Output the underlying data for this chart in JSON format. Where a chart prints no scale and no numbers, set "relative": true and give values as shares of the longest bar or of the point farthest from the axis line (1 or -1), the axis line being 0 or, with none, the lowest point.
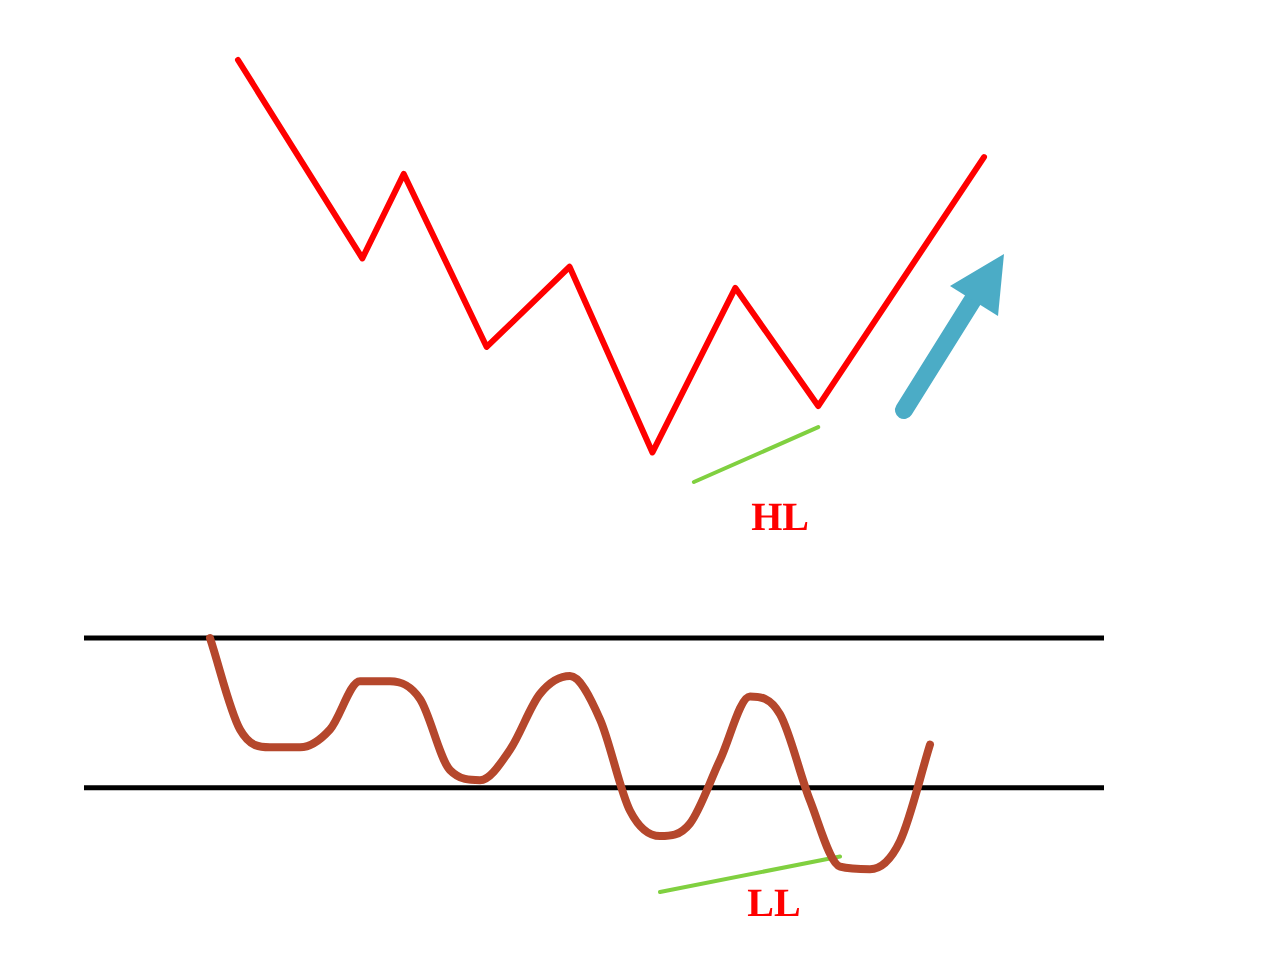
{
  "chart_data": [
    {
      "type": "line",
      "relative": true,
      "categories": [
        null,
        null,
        null,
        null,
        null,
        null,
        null,
        null,
        null,
        null,
        null,
        null,
        null,
        null,
        null,
        null,
        null,
        null,
        null
      ],
      "series": [
        {
          "color": "#ff0000",
          "values": [
            1,
            null,
            null,
            0.53,
            0.73,
            null,
            0.32,
            null,
            0.51,
            null,
            0.07,
            null,
            0.46,
            null,
            0.18,
            null,
            null,
            null,
            0.77
          ]
        },
        {
          "color": "#80d040",
          "values": [
            null,
            null,
            null,
            null,
            null,
            null,
            null,
            null,
            null,
            null,
            null,
            0,
            null,
            null,
            0.13,
            null,
            null,
            null,
            null
          ]
        }
      ],
      "annotations": [
        "HL"
      ],
      "legend": false
    },
    {
      "type": "line",
      "relative": true,
      "categories": [
        null,
        null,
        null,
        null,
        null,
        null,
        null,
        null,
        null,
        null,
        null,
        null,
        null,
        null,
        null,
        null,
        null,
        null,
        null,
        null,
        null,
        null,
        null,
        null,
        null
      ],
      "series": [
        {
          "color": "#b5472c",
          "values": [
            1,
            0.64,
            0.57,
            0.57,
            0.64,
            0.83,
            0.83,
            0.76,
            0.48,
            0.44,
            0.56,
            0.78,
            0.85,
            0.68,
            0.32,
            0.22,
            0.27,
            0.52,
            0.77,
            0.7,
            0.36,
            0.1,
            0.09,
            0.2,
            0.58
          ]
        },
        {
          "color": "#80d040",
          "values": [
            null,
            null,
            null,
            null,
            null,
            null,
            null,
            null,
            null,
            null,
            null,
            null,
            null,
            null,
            null,
            0,
            null,
            null,
            null,
            null,
            null,
            0.14,
            null,
            null,
            null
          ]
        }
      ],
      "ref_lines": [
        {
          "axis": "y",
          "value": 1,
          "color": "#000000"
        },
        {
          "axis": "y",
          "value": 0.41,
          "color": "#000000"
        }
      ],
      "annotations": [
        "LL"
      ],
      "legend": false
    }
  ]
}
